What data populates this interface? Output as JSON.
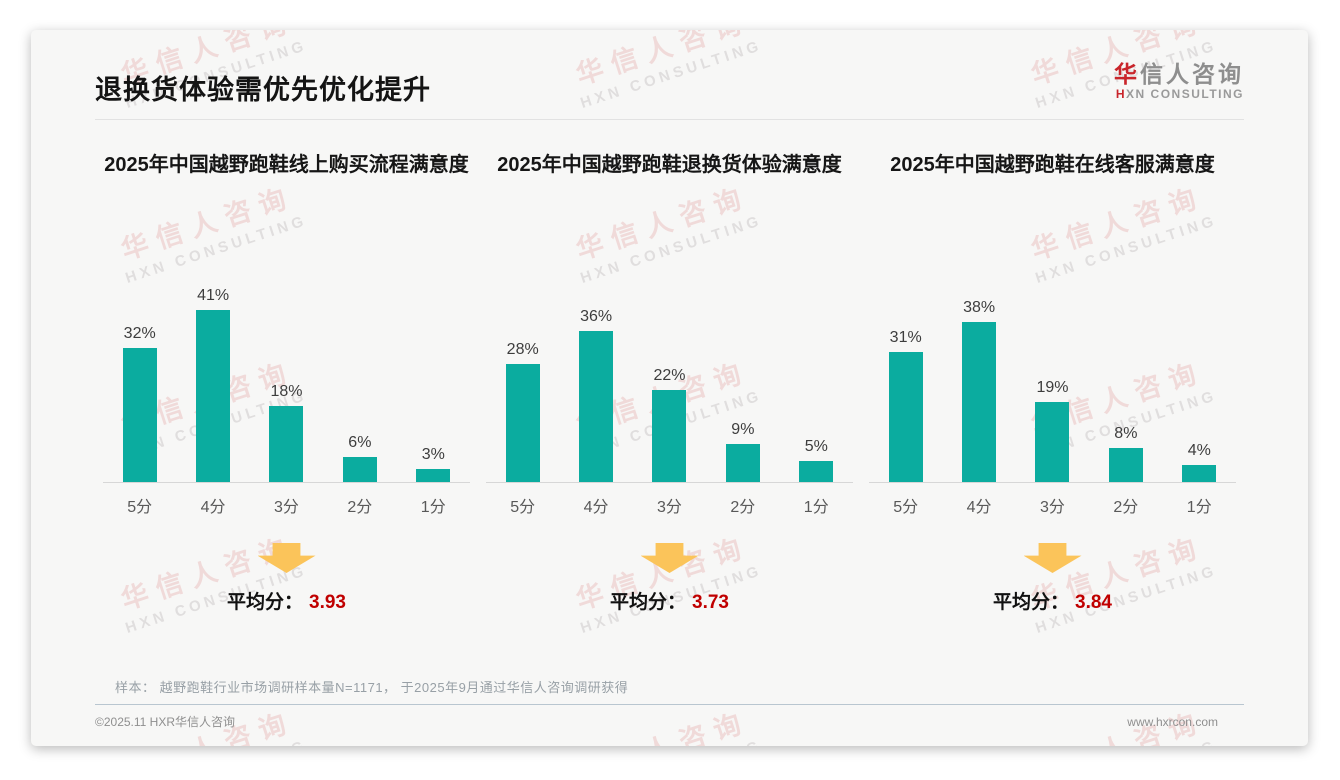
{
  "header": {
    "title": "退换货体验需优先优化提升"
  },
  "logo": {
    "zh_accent": "华",
    "zh_rest": "信人咨询",
    "en_accent": "H",
    "en_rest": "XN CONSULTING"
  },
  "watermark": {
    "line1": "华信人咨询",
    "line2": "HXN CONSULTING"
  },
  "colors": {
    "bar": "#0BAC9F",
    "average_value": "#C00000",
    "arrow": "#FBC45A",
    "logo_accent": "#C9252B"
  },
  "charts": [
    {
      "title": "2025年中国越野跑鞋线上购买流程满意度",
      "categories": [
        "5分",
        "4分",
        "3分",
        "2分",
        "1分"
      ],
      "values": [
        32,
        41,
        18,
        6,
        3
      ],
      "value_labels": [
        "32%",
        "41%",
        "18%",
        "6%",
        "3%"
      ],
      "avg_label": "平均分：",
      "avg_value": "3.93"
    },
    {
      "title": "2025年中国越野跑鞋退换货体验满意度",
      "categories": [
        "5分",
        "4分",
        "3分",
        "2分",
        "1分"
      ],
      "values": [
        28,
        36,
        22,
        9,
        5
      ],
      "value_labels": [
        "28%",
        "36%",
        "22%",
        "9%",
        "5%"
      ],
      "avg_label": "平均分：",
      "avg_value": "3.73"
    },
    {
      "title": "2025年中国越野跑鞋在线客服满意度",
      "categories": [
        "5分",
        "4分",
        "3分",
        "2分",
        "1分"
      ],
      "values": [
        31,
        38,
        19,
        8,
        4
      ],
      "value_labels": [
        "31%",
        "38%",
        "19%",
        "8%",
        "4%"
      ],
      "avg_label": "平均分：",
      "avg_value": "3.84"
    }
  ],
  "chart_data": [
    {
      "type": "bar",
      "title": "2025年中国越野跑鞋线上购买流程满意度",
      "categories": [
        "5分",
        "4分",
        "3分",
        "2分",
        "1分"
      ],
      "values": [
        32,
        41,
        18,
        6,
        3
      ],
      "unit": "%",
      "average": 3.93,
      "xlabel": "",
      "ylabel": "",
      "ylim": [
        0,
        50
      ],
      "grid": false,
      "legend": "none",
      "bar_color": "#0BAC9F"
    },
    {
      "type": "bar",
      "title": "2025年中国越野跑鞋退换货体验满意度",
      "categories": [
        "5分",
        "4分",
        "3分",
        "2分",
        "1分"
      ],
      "values": [
        28,
        36,
        22,
        9,
        5
      ],
      "unit": "%",
      "average": 3.73,
      "xlabel": "",
      "ylabel": "",
      "ylim": [
        0,
        50
      ],
      "grid": false,
      "legend": "none",
      "bar_color": "#0BAC9F"
    },
    {
      "type": "bar",
      "title": "2025年中国越野跑鞋在线客服满意度",
      "categories": [
        "5分",
        "4分",
        "3分",
        "2分",
        "1分"
      ],
      "values": [
        31,
        38,
        19,
        8,
        4
      ],
      "unit": "%",
      "average": 3.84,
      "xlabel": "",
      "ylabel": "",
      "ylim": [
        0,
        50
      ],
      "grid": false,
      "legend": "none",
      "bar_color": "#0BAC9F"
    }
  ],
  "sample_note": "样本： 越野跑鞋行业市场调研样本量N=1171， 于2025年9月通过华信人咨询调研获得",
  "footer": {
    "left": "©2025.11 HXR华信人咨询",
    "right": "www.hxrcon.com"
  }
}
